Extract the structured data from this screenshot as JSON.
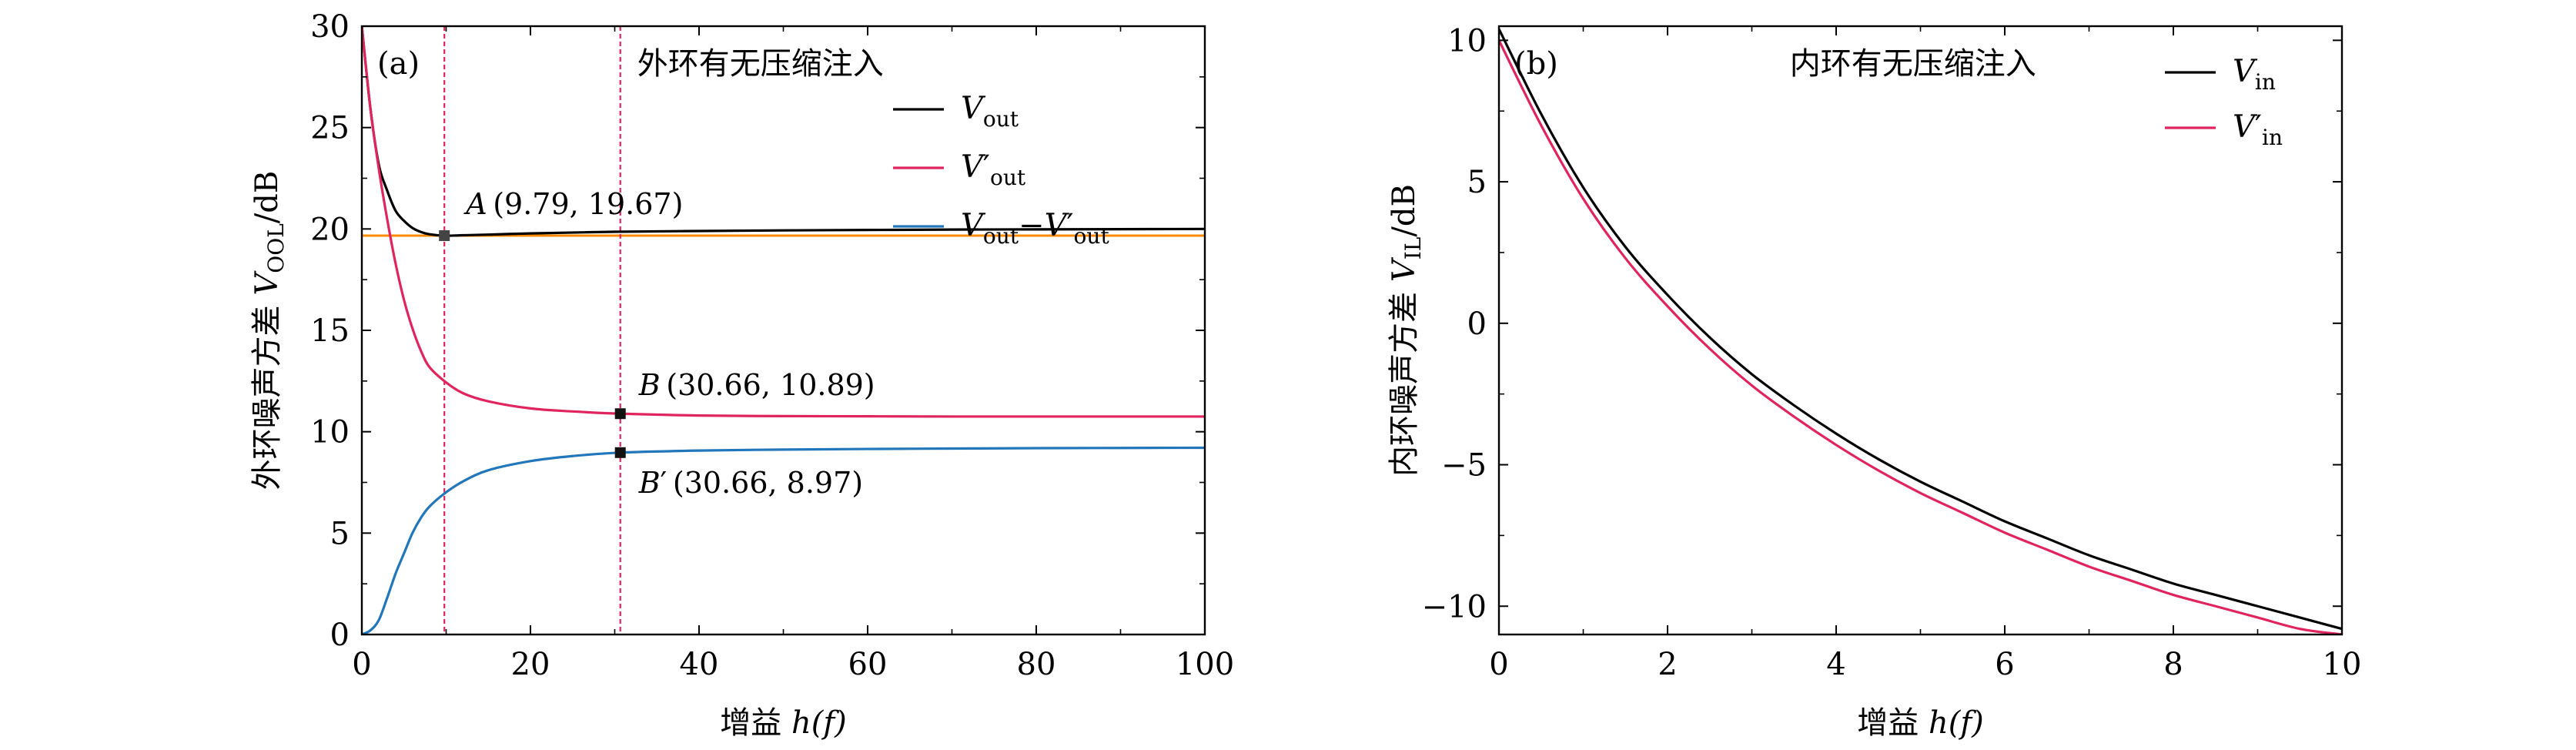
{
  "chart_data": [
    {
      "id": "a",
      "type": "line",
      "panel_label": "(a)",
      "title": "外环有无压缩注入",
      "xlabel": "增益",
      "xlabel_math": "h(f)",
      "ylabel": "外环噪声方差",
      "ylabel_math": "V",
      "ylabel_sub": "OOL",
      "ylabel_unit": "/dB",
      "xlim": [
        0,
        100
      ],
      "ylim": [
        0,
        30
      ],
      "xticks": [
        0,
        20,
        40,
        60,
        80,
        100
      ],
      "yticks": [
        0,
        5,
        10,
        15,
        20,
        25,
        30
      ],
      "xtick_labels": [
        "0",
        "20",
        "40",
        "60",
        "80",
        "100"
      ],
      "ytick_labels": [
        "0",
        "5",
        "10",
        "15",
        "20",
        "25",
        "30"
      ],
      "legend_position": "top-right",
      "legend": [
        {
          "base": "V",
          "prime": "",
          "sub": "out",
          "minus_base": "",
          "minus_prime": "",
          "minus_sub": ""
        },
        {
          "base": "V",
          "prime": "′",
          "sub": "out",
          "minus_base": "",
          "minus_prime": "",
          "minus_sub": ""
        },
        {
          "base": "V",
          "prime": "",
          "sub": "out",
          "minus_base": "−V",
          "minus_prime": "′",
          "minus_sub": "out"
        }
      ],
      "series": [
        {
          "name": "Vout",
          "color": "#000000",
          "x": [
            0,
            1,
            2,
            3,
            4,
            5,
            6,
            7,
            8,
            9.79,
            12,
            15,
            20,
            30,
            40,
            50,
            60,
            70,
            80,
            90,
            100
          ],
          "y": [
            30,
            26,
            23.2,
            21.9,
            20.9,
            20.4,
            20.05,
            19.85,
            19.74,
            19.67,
            19.69,
            19.72,
            19.78,
            19.86,
            19.9,
            19.93,
            19.95,
            19.97,
            19.98,
            19.99,
            20.0
          ]
        },
        {
          "name": "V'out",
          "color": "#e0245e",
          "x": [
            0,
            1,
            2,
            3,
            4,
            5,
            6,
            7,
            8,
            9.79,
            12,
            15,
            20,
            25,
            30.66,
            40,
            50,
            60,
            70,
            80,
            90,
            100
          ],
          "y": [
            30,
            26,
            23,
            20.5,
            18.3,
            16.5,
            15.1,
            14.0,
            13.2,
            12.5,
            11.9,
            11.5,
            11.15,
            11.0,
            10.89,
            10.8,
            10.77,
            10.76,
            10.75,
            10.75,
            10.75,
            10.75
          ]
        },
        {
          "name": "Vout-V'out",
          "color": "#2277bb",
          "x": [
            0,
            1,
            2,
            3,
            4,
            5,
            6,
            7,
            8,
            9.79,
            12,
            15,
            20,
            25,
            30.66,
            40,
            50,
            60,
            70,
            80,
            90,
            100
          ],
          "y": [
            0,
            0.2,
            0.7,
            1.8,
            3.0,
            4.0,
            5.0,
            5.75,
            6.3,
            6.95,
            7.55,
            8.1,
            8.55,
            8.8,
            8.97,
            9.07,
            9.12,
            9.15,
            9.17,
            9.19,
            9.2,
            9.21
          ]
        }
      ],
      "reference_lines": {
        "horizontal_y": 19.67,
        "horizontal_color": "#ff8c00",
        "vertical_x": [
          9.79,
          30.66
        ],
        "vertical_color": "#e0245e"
      },
      "points": [
        {
          "name": "A",
          "prime": "",
          "x": 9.79,
          "y": 19.67,
          "coords": "(9.79, 19.67)"
        },
        {
          "name": "B",
          "prime": "",
          "x": 30.66,
          "y": 10.89,
          "coords": "(30.66, 10.89)"
        },
        {
          "name": "B",
          "prime": "′",
          "x": 30.66,
          "y": 8.97,
          "coords": "(30.66, 8.97)"
        }
      ]
    },
    {
      "id": "b",
      "type": "line",
      "panel_label": "(b)",
      "title": "内环有无压缩注入",
      "xlabel": "增益",
      "xlabel_math": "h(f)",
      "ylabel": "内环噪声方差",
      "ylabel_math": "V",
      "ylabel_sub": "IL",
      "ylabel_unit": "/dB",
      "xlim": [
        0,
        10
      ],
      "ylim": [
        -11,
        10.5
      ],
      "xticks": [
        0,
        2,
        4,
        6,
        8,
        10
      ],
      "yticks": [
        -10,
        -5,
        0,
        5,
        10
      ],
      "xtick_labels": [
        "0",
        "2",
        "4",
        "6",
        "8",
        "10"
      ],
      "ytick_labels": [
        "−10",
        "−5",
        "0",
        "5",
        "10"
      ],
      "legend_position": "top-right",
      "legend": [
        {
          "base": "V",
          "prime": "",
          "sub": "in"
        },
        {
          "base": "V",
          "prime": "′",
          "sub": "in"
        }
      ],
      "series": [
        {
          "name": "Vin",
          "color": "#000000",
          "x": [
            0,
            0.5,
            1,
            1.5,
            2,
            2.5,
            3,
            3.5,
            4,
            4.5,
            5,
            5.5,
            6,
            6.5,
            7,
            7.5,
            8,
            8.5,
            9,
            9.5,
            10
          ],
          "y": [
            10.4,
            7.4,
            4.8,
            2.7,
            1.0,
            -0.5,
            -1.8,
            -2.9,
            -3.9,
            -4.8,
            -5.6,
            -6.3,
            -7.0,
            -7.6,
            -8.2,
            -8.7,
            -9.2,
            -9.6,
            -10.0,
            -10.4,
            -10.8
          ]
        },
        {
          "name": "V'in",
          "color": "#e0245e",
          "x": [
            0,
            0.5,
            1,
            1.5,
            2,
            2.5,
            3,
            3.5,
            4,
            4.5,
            5,
            5.5,
            6,
            6.5,
            7,
            7.5,
            8,
            8.5,
            9,
            9.5,
            10
          ],
          "y": [
            10.0,
            7.0,
            4.4,
            2.3,
            0.6,
            -0.9,
            -2.2,
            -3.3,
            -4.3,
            -5.2,
            -6.0,
            -6.7,
            -7.4,
            -8.0,
            -8.6,
            -9.1,
            -9.6,
            -10.0,
            -10.4,
            -10.8,
            -11.0
          ]
        }
      ]
    }
  ]
}
